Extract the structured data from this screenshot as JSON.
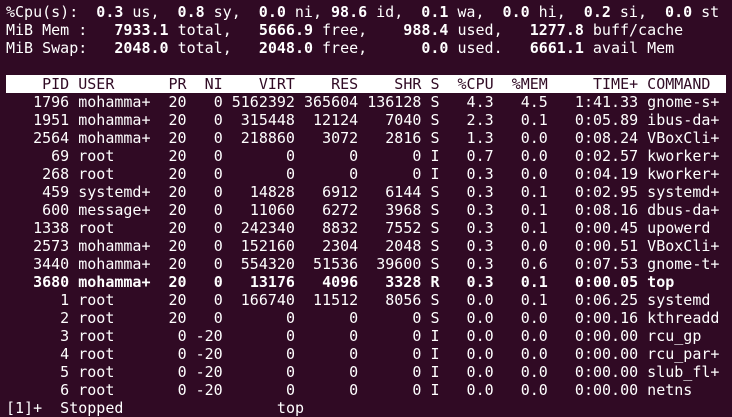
{
  "summary": [
    {
      "label": "%Cpu(s):",
      "items": [
        {
          "value": "0.3",
          "unit": "us,"
        },
        {
          "value": "0.8",
          "unit": "sy,"
        },
        {
          "value": "0.0",
          "unit": "ni,"
        },
        {
          "value": "98.6",
          "unit": "id,"
        },
        {
          "value": "0.1",
          "unit": "wa,"
        },
        {
          "value": "0.0",
          "unit": "hi,"
        },
        {
          "value": "0.2",
          "unit": "si,"
        },
        {
          "value": "0.0",
          "unit": "st"
        }
      ]
    },
    {
      "label": "MiB Mem :",
      "items": [
        {
          "value": "7933.1",
          "unit": "total,"
        },
        {
          "value": "5666.9",
          "unit": "free,"
        },
        {
          "value": "988.4",
          "unit": "used,"
        },
        {
          "value": "1277.8",
          "unit": "buff/cache"
        }
      ]
    },
    {
      "label": "MiB Swap:",
      "items": [
        {
          "value": "2048.0",
          "unit": "total,"
        },
        {
          "value": "2048.0",
          "unit": "free,"
        },
        {
          "value": "0.0",
          "unit": "used."
        },
        {
          "value": "6661.1",
          "unit": "avail Mem"
        }
      ]
    }
  ],
  "table": {
    "columns": [
      "PID",
      "USER",
      "PR",
      "NI",
      "VIRT",
      "RES",
      "SHR",
      "S",
      "%CPU",
      "%MEM",
      "TIME+",
      "COMMAND"
    ],
    "rows": [
      [
        "1796",
        "mohamma+",
        "20",
        "0",
        "5162392",
        "365604",
        "136128",
        "S",
        "4.3",
        "4.5",
        "1:41.33",
        "gnome-s+"
      ],
      [
        "1951",
        "mohamma+",
        "20",
        "0",
        "315448",
        "12124",
        "7040",
        "S",
        "2.3",
        "0.1",
        "0:05.89",
        "ibus-da+"
      ],
      [
        "2564",
        "mohamma+",
        "20",
        "0",
        "218860",
        "3072",
        "2816",
        "S",
        "1.3",
        "0.0",
        "0:08.24",
        "VBoxCli+"
      ],
      [
        "69",
        "root",
        "20",
        "0",
        "0",
        "0",
        "0",
        "I",
        "0.7",
        "0.0",
        "0:02.57",
        "kworker+"
      ],
      [
        "268",
        "root",
        "20",
        "0",
        "0",
        "0",
        "0",
        "I",
        "0.3",
        "0.0",
        "0:04.19",
        "kworker+"
      ],
      [
        "459",
        "systemd+",
        "20",
        "0",
        "14828",
        "6912",
        "6144",
        "S",
        "0.3",
        "0.1",
        "0:02.95",
        "systemd+"
      ],
      [
        "600",
        "message+",
        "20",
        "0",
        "11060",
        "6272",
        "3968",
        "S",
        "0.3",
        "0.1",
        "0:08.16",
        "dbus-da+"
      ],
      [
        "1338",
        "root",
        "20",
        "0",
        "242340",
        "8832",
        "7552",
        "S",
        "0.3",
        "0.1",
        "0:00.45",
        "upowerd"
      ],
      [
        "2573",
        "mohamma+",
        "20",
        "0",
        "152160",
        "2304",
        "2048",
        "S",
        "0.3",
        "0.0",
        "0:00.51",
        "VBoxCli+"
      ],
      [
        "3440",
        "mohamma+",
        "20",
        "0",
        "554320",
        "51536",
        "39600",
        "S",
        "0.3",
        "0.6",
        "0:07.53",
        "gnome-t+"
      ],
      [
        "3680",
        "mohamma+",
        "20",
        "0",
        "13176",
        "4096",
        "3328",
        "R",
        "0.3",
        "0.1",
        "0:00.05",
        "top"
      ],
      [
        "1",
        "root",
        "20",
        "0",
        "166740",
        "11512",
        "8056",
        "S",
        "0.0",
        "0.1",
        "0:06.25",
        "systemd"
      ],
      [
        "2",
        "root",
        "20",
        "0",
        "0",
        "0",
        "0",
        "S",
        "0.0",
        "0.0",
        "0:00.16",
        "kthreadd"
      ],
      [
        "3",
        "root",
        "0",
        "-20",
        "0",
        "0",
        "0",
        "I",
        "0.0",
        "0.0",
        "0:00.00",
        "rcu_gp"
      ],
      [
        "4",
        "root",
        "0",
        "-20",
        "0",
        "0",
        "0",
        "I",
        "0.0",
        "0.0",
        "0:00.00",
        "rcu_par+"
      ],
      [
        "5",
        "root",
        "0",
        "-20",
        "0",
        "0",
        "0",
        "I",
        "0.0",
        "0.0",
        "0:00.00",
        "slub_fl+"
      ],
      [
        "6",
        "root",
        "0",
        "-20",
        "0",
        "0",
        "0",
        "I",
        "0.0",
        "0.0",
        "0:00.00",
        "netns"
      ]
    ],
    "bold_rows": [
      10
    ]
  },
  "footer": {
    "job": "[1]+",
    "status": "Stopped",
    "command": "top"
  }
}
